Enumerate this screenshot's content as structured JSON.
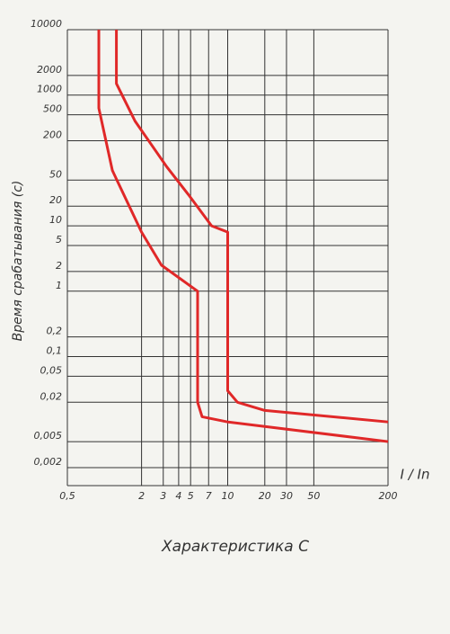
{
  "chart_data": {
    "type": "line",
    "title": "Характеристика С",
    "ylabel": "Время срабатывания (с)",
    "xlabel": "I / In",
    "xscale": "log",
    "yscale": "log",
    "grid": true,
    "xlim": [
      0.5,
      200
    ],
    "ylim": [
      0.002,
      10000
    ],
    "xticks": [
      {
        "value": 0.5,
        "label": "0,5"
      },
      2,
      3,
      4,
      5,
      7,
      10,
      20,
      30,
      50,
      200
    ],
    "yticks": [
      10000,
      2000,
      1000,
      500,
      200,
      50,
      20,
      10,
      5,
      2,
      1,
      {
        "value": 0.2,
        "label": "0,2"
      },
      {
        "value": 0.1,
        "label": "0,1"
      },
      {
        "value": 0.05,
        "label": "0,05"
      },
      {
        "value": 0.02,
        "label": "0,02"
      },
      {
        "value": 0.005,
        "label": "0,005"
      },
      {
        "value": 0.002,
        "label": "0,002"
      }
    ],
    "series": [
      {
        "color": "#e02828",
        "x": [
          0.9,
          0.9,
          1.16,
          2,
          2.9,
          5.7,
          5.7,
          6.2,
          10,
          200
        ],
        "values": [
          10000,
          630,
          70,
          8,
          2.5,
          1,
          0.02,
          0.012,
          0.01,
          0.005
        ]
      },
      {
        "color": "#e02828",
        "x": [
          1.25,
          1.25,
          1.77,
          3.2,
          4.8,
          7.4,
          10,
          10,
          12,
          20,
          200
        ],
        "values": [
          10000,
          1500,
          400,
          80,
          30,
          10,
          8,
          0.03,
          0.02,
          0.015,
          0.01
        ]
      }
    ]
  }
}
